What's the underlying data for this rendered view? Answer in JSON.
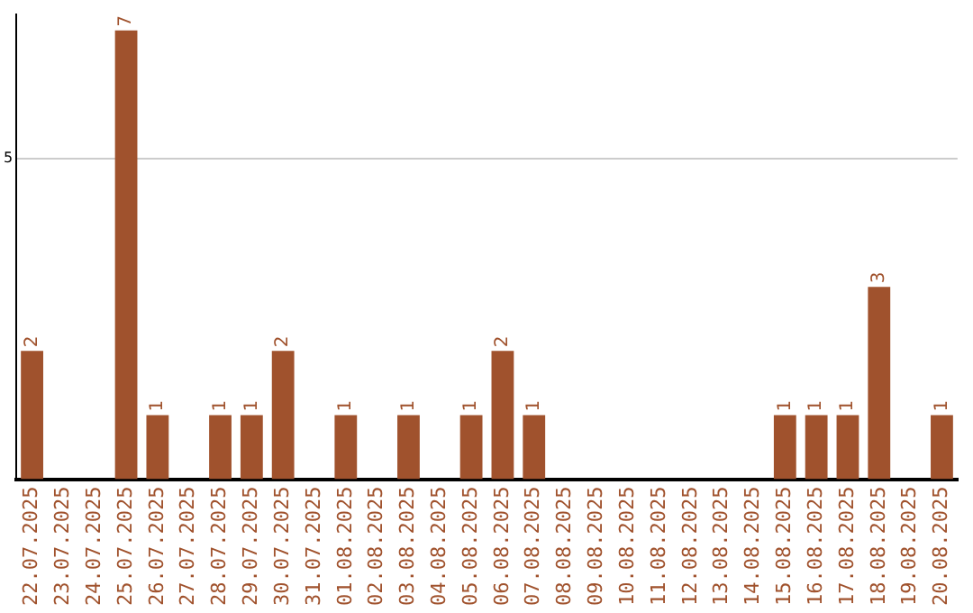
{
  "chart_data": {
    "type": "bar",
    "categories": [
      "22.07.2025",
      "23.07.2025",
      "24.07.2025",
      "25.07.2025",
      "26.07.2025",
      "27.07.2025",
      "28.07.2025",
      "29.07.2025",
      "30.07.2025",
      "31.07.2025",
      "01.08.2025",
      "02.08.2025",
      "03.08.2025",
      "04.08.2025",
      "05.08.2025",
      "06.08.2025",
      "07.08.2025",
      "08.08.2025",
      "09.08.2025",
      "10.08.2025",
      "11.08.2025",
      "12.08.2025",
      "13.08.2025",
      "14.08.2025",
      "15.08.2025",
      "16.08.2025",
      "17.08.2025",
      "18.08.2025",
      "19.08.2025",
      "20.08.2025"
    ],
    "values": [
      2,
      0,
      0,
      7,
      1,
      0,
      1,
      1,
      2,
      0,
      1,
      0,
      1,
      0,
      1,
      2,
      1,
      0,
      0,
      0,
      0,
      0,
      0,
      0,
      1,
      1,
      1,
      3,
      0,
      1
    ],
    "value_labels": [
      "2",
      null,
      null,
      "7",
      "1",
      null,
      "1",
      "1",
      "2",
      null,
      "1",
      null,
      "1",
      null,
      "1",
      "2",
      "1",
      null,
      null,
      null,
      null,
      null,
      null,
      null,
      "1",
      "1",
      "1",
      "3",
      null,
      "1"
    ],
    "color": "#a0522d",
    "ylim": [
      0,
      7.25
    ],
    "yticks": [
      5
    ],
    "grid": "y",
    "legend": false
  }
}
